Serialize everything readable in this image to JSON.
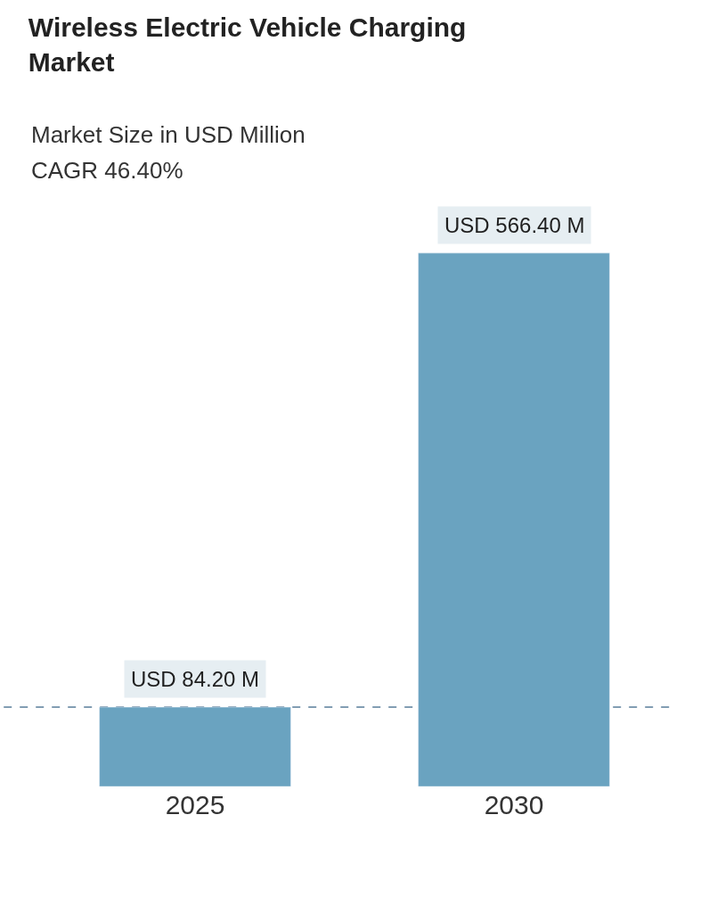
{
  "chart_data": {
    "type": "bar",
    "title": "Wireless Electric Vehicle Charging Market",
    "subtitle": "Market Size in USD Million",
    "annotations": [
      "CAGR 46.40%"
    ],
    "categories": [
      "2025",
      "2030"
    ],
    "values": [
      84.2,
      566.4
    ],
    "value_labels": [
      "USD 84.20 M",
      "USD 566.40 M"
    ],
    "color": "#6aa3c0",
    "ref_lines": [
      {
        "axis": "y",
        "value": 84.2,
        "color": "#5a7d9a",
        "line_style": "dashed"
      }
    ],
    "legend": false
  }
}
